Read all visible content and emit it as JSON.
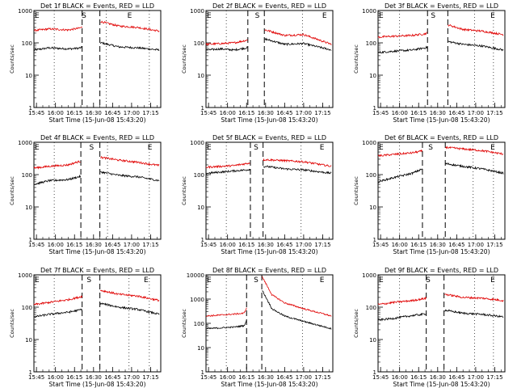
{
  "figure": {
    "xlabel": "Start Time (15-Jun-08 15:43:20)",
    "ylabel": "Counts/sec",
    "colors": {
      "events": "#000000",
      "lld": "#e00000"
    }
  },
  "chart_data": [
    {
      "type": "line",
      "title": "Det 1f BLACK = Events, RED = LLD",
      "xlabel": "Start Time (15-Jun-08 15:43:20)",
      "ylabel": "Counts/sec",
      "x_unit": "time",
      "xlim": [
        "15:43",
        "17:23"
      ],
      "x_ticks": [
        "15:45",
        "16:00",
        "16:15",
        "16:30",
        "16:45",
        "17:00",
        "17:15"
      ],
      "y_scale": "log",
      "ylim": [
        1,
        1000
      ],
      "y_ticks": [
        1,
        10,
        100,
        1000
      ],
      "markers": [
        {
          "label": "E",
          "time": "15:43"
        },
        {
          "label": "S",
          "time": "16:20"
        },
        {
          "label": "E",
          "time": "16:56"
        }
      ],
      "dashed_lines": [
        "16:21",
        "16:35"
      ],
      "dotted_lines": [
        "15:59",
        "16:40",
        "17:14"
      ],
      "series": [
        {
          "name": "Events",
          "color": "#000000",
          "times": [
            "15:43",
            "15:55",
            "16:10",
            "16:18",
            "16:36",
            "16:50",
            "17:05",
            "17:22"
          ],
          "values": [
            60,
            70,
            65,
            68,
            100,
            75,
            70,
            60
          ]
        },
        {
          "name": "LLD",
          "color": "#e00000",
          "times": [
            "15:43",
            "15:55",
            "16:10",
            "16:18",
            "16:36",
            "16:50",
            "17:05",
            "17:22"
          ],
          "values": [
            240,
            270,
            250,
            280,
            450,
            330,
            300,
            230
          ]
        }
      ]
    },
    {
      "type": "line",
      "title": "Det 2f BLACK = Events, RED = LLD",
      "xlabel": "Start Time (15-Jun-08 15:43:20)",
      "ylabel": "Counts/sec",
      "x_unit": "time",
      "xlim": [
        "15:43",
        "17:23"
      ],
      "x_ticks": [
        "15:45",
        "16:00",
        "16:15",
        "16:30",
        "16:45",
        "17:00",
        "17:15"
      ],
      "y_scale": "log",
      "ylim": [
        1,
        1000
      ],
      "y_ticks": [
        1,
        10,
        100,
        1000
      ],
      "markers": [
        {
          "label": "E",
          "time": "15:43"
        },
        {
          "label": "S",
          "time": "16:21"
        },
        {
          "label": "E",
          "time": "17:14"
        }
      ],
      "dashed_lines": [
        "16:16",
        "16:29"
      ],
      "dotted_lines": [
        "15:59",
        "16:59"
      ],
      "series": [
        {
          "name": "Events",
          "color": "#000000",
          "times": [
            "15:43",
            "15:55",
            "16:05",
            "16:15",
            "16:30",
            "16:45",
            "17:00",
            "17:22"
          ],
          "values": [
            60,
            65,
            60,
            70,
            130,
            90,
            95,
            60
          ]
        },
        {
          "name": "LLD",
          "color": "#e00000",
          "times": [
            "15:43",
            "15:55",
            "16:05",
            "16:15",
            "16:30",
            "16:45",
            "17:00",
            "17:22"
          ],
          "values": [
            90,
            95,
            100,
            120,
            250,
            170,
            180,
            90
          ]
        }
      ]
    },
    {
      "type": "line",
      "title": "Det 3f BLACK = Events, RED = LLD",
      "xlabel": "Start Time (15-Jun-08 15:43:20)",
      "ylabel": "Counts/sec",
      "x_unit": "time",
      "xlim": [
        "15:43",
        "17:23"
      ],
      "x_ticks": [
        "15:45",
        "16:00",
        "16:15",
        "16:30",
        "16:45",
        "17:00",
        "17:15"
      ],
      "y_scale": "log",
      "ylim": [
        1,
        1000
      ],
      "y_ticks": [
        1,
        10,
        100,
        1000
      ],
      "markers": [
        {
          "label": "E",
          "time": "15:43"
        },
        {
          "label": "S",
          "time": "16:24"
        },
        {
          "label": "E",
          "time": "17:11"
        }
      ],
      "dashed_lines": [
        "16:22",
        "16:38"
      ],
      "dotted_lines": [
        "16:00",
        "16:59",
        "17:14"
      ],
      "series": [
        {
          "name": "Events",
          "color": "#000000",
          "times": [
            "15:43",
            "15:55",
            "16:10",
            "16:20",
            "16:38",
            "16:50",
            "17:05",
            "17:22"
          ],
          "values": [
            50,
            55,
            60,
            70,
            110,
            90,
            80,
            60
          ]
        },
        {
          "name": "LLD",
          "color": "#e00000",
          "times": [
            "15:43",
            "15:55",
            "16:10",
            "16:20",
            "16:38",
            "16:50",
            "17:05",
            "17:22"
          ],
          "values": [
            150,
            160,
            170,
            190,
            360,
            260,
            230,
            180
          ]
        }
      ]
    },
    {
      "type": "line",
      "title": "Det 4f BLACK = Events, RED = LLD",
      "xlabel": "Start Time (15-Jun-08 15:43:20)",
      "ylabel": "Counts/sec",
      "x_unit": "time",
      "xlim": [
        "15:43",
        "17:23"
      ],
      "x_ticks": [
        "15:45",
        "16:00",
        "16:15",
        "16:30",
        "16:45",
        "17:00",
        "17:15"
      ],
      "y_scale": "log",
      "ylim": [
        1,
        1000
      ],
      "y_ticks": [
        1,
        10,
        100,
        1000
      ],
      "markers": [
        {
          "label": "E",
          "time": "15:43"
        },
        {
          "label": "S",
          "time": "16:26"
        },
        {
          "label": "E",
          "time": "17:12"
        }
      ],
      "dashed_lines": [
        "16:20",
        "16:35"
      ],
      "dotted_lines": [
        "15:59",
        "16:41",
        "17:14"
      ],
      "series": [
        {
          "name": "Events",
          "color": "#000000",
          "times": [
            "15:43",
            "15:55",
            "16:10",
            "16:18",
            "16:36",
            "16:50",
            "17:05",
            "17:22"
          ],
          "values": [
            50,
            65,
            70,
            85,
            120,
            95,
            85,
            65
          ]
        },
        {
          "name": "LLD",
          "color": "#e00000",
          "times": [
            "15:43",
            "15:55",
            "16:10",
            "16:18",
            "16:36",
            "16:50",
            "17:05",
            "17:22"
          ],
          "values": [
            160,
            180,
            200,
            250,
            340,
            280,
            240,
            190
          ]
        }
      ]
    },
    {
      "type": "line",
      "title": "Det 5f BLACK = Events, RED = LLD",
      "xlabel": "Start Time (15-Jun-08 15:43:20)",
      "ylabel": "Counts/sec",
      "x_unit": "time",
      "xlim": [
        "15:43",
        "17:23"
      ],
      "x_ticks": [
        "15:45",
        "16:00",
        "16:15",
        "16:30",
        "16:45",
        "17:00",
        "17:15"
      ],
      "y_scale": "log",
      "ylim": [
        1,
        1000
      ],
      "y_ticks": [
        1,
        10,
        100,
        1000
      ],
      "markers": [
        {
          "label": "E",
          "time": "15:43"
        },
        {
          "label": "S",
          "time": "16:20"
        },
        {
          "label": "E",
          "time": "17:12"
        }
      ],
      "dashed_lines": [
        "16:18",
        "16:28"
      ],
      "dotted_lines": [
        "15:59",
        "16:58"
      ],
      "series": [
        {
          "name": "Events",
          "color": "#000000",
          "times": [
            "15:43",
            "15:55",
            "16:05",
            "16:15",
            "16:30",
            "16:45",
            "17:00",
            "17:22"
          ],
          "values": [
            110,
            120,
            130,
            140,
            180,
            150,
            140,
            110
          ]
        },
        {
          "name": "LLD",
          "color": "#e00000",
          "times": [
            "15:43",
            "15:55",
            "16:05",
            "16:15",
            "16:30",
            "16:45",
            "17:00",
            "17:22"
          ],
          "values": [
            170,
            180,
            190,
            220,
            290,
            270,
            250,
            180
          ]
        }
      ]
    },
    {
      "type": "line",
      "title": "Det 6f BLACK = Events, RED = LLD",
      "xlabel": "Start Time (15-Jun-08 15:43:20)",
      "ylabel": "Counts/sec",
      "x_unit": "time",
      "xlim": [
        "15:43",
        "17:23"
      ],
      "x_ticks": [
        "15:45",
        "16:00",
        "16:15",
        "16:30",
        "16:45",
        "17:00",
        "17:15"
      ],
      "y_scale": "log",
      "ylim": [
        1,
        1000
      ],
      "y_ticks": [
        1,
        10,
        100,
        1000
      ],
      "markers": [
        {
          "label": "E",
          "time": "15:43"
        },
        {
          "label": "S",
          "time": "16:22"
        },
        {
          "label": "E",
          "time": "17:11"
        }
      ],
      "dashed_lines": [
        "16:18",
        "16:36"
      ],
      "dotted_lines": [
        "16:00",
        "16:58",
        "17:14"
      ],
      "series": [
        {
          "name": "Events",
          "color": "#000000",
          "times": [
            "15:43",
            "15:55",
            "16:10",
            "16:18",
            "16:36",
            "16:50",
            "17:05",
            "17:22"
          ],
          "values": [
            60,
            80,
            110,
            150,
            220,
            180,
            150,
            110
          ]
        },
        {
          "name": "LLD",
          "color": "#e00000",
          "times": [
            "15:43",
            "15:55",
            "16:10",
            "16:18",
            "16:36",
            "16:50",
            "17:05",
            "17:22"
          ],
          "values": [
            380,
            420,
            470,
            540,
            700,
            620,
            550,
            430
          ]
        }
      ]
    },
    {
      "type": "line",
      "title": "Det 7f BLACK = Events, RED = LLD",
      "xlabel": "Start Time (15-Jun-08 15:43:20)",
      "ylabel": "Counts/sec",
      "x_unit": "time",
      "xlim": [
        "15:43",
        "17:23"
      ],
      "x_ticks": [
        "15:45",
        "16:00",
        "16:15",
        "16:30",
        "16:45",
        "17:00",
        "17:15"
      ],
      "y_scale": "log",
      "ylim": [
        1,
        1000
      ],
      "y_ticks": [
        1,
        10,
        100,
        1000
      ],
      "markers": [
        {
          "label": "E",
          "time": "15:43"
        },
        {
          "label": "S",
          "time": "16:24"
        },
        {
          "label": "E",
          "time": "17:09"
        }
      ],
      "dashed_lines": [
        "16:21",
        "16:35"
      ],
      "dotted_lines": [
        "15:59",
        "16:58",
        "17:14"
      ],
      "series": [
        {
          "name": "Events",
          "color": "#000000",
          "times": [
            "15:43",
            "15:55",
            "16:10",
            "16:18",
            "16:36",
            "16:50",
            "17:05",
            "17:22"
          ],
          "values": [
            50,
            60,
            70,
            80,
            130,
            100,
            85,
            60
          ]
        },
        {
          "name": "LLD",
          "color": "#e00000",
          "times": [
            "15:43",
            "15:55",
            "16:10",
            "16:18",
            "16:36",
            "16:50",
            "17:05",
            "17:22"
          ],
          "values": [
            120,
            140,
            170,
            200,
            330,
            250,
            220,
            160
          ]
        }
      ]
    },
    {
      "type": "line",
      "title": "Det 8f BLACK = Events, RED = LLD",
      "xlabel": "Start Time (15-Jun-08 15:43:20)",
      "ylabel": "Counts/sec",
      "x_unit": "time",
      "xlim": [
        "15:43",
        "17:23"
      ],
      "x_ticks": [
        "15:45",
        "16:00",
        "16:15",
        "16:30",
        "16:45",
        "17:00",
        "17:15"
      ],
      "y_scale": "log",
      "ylim": [
        1,
        10000
      ],
      "y_ticks": [
        1,
        10,
        100,
        1000,
        10000
      ],
      "markers": [
        {
          "label": "E",
          "time": "15:43"
        },
        {
          "label": "S",
          "time": "16:20"
        },
        {
          "label": "E",
          "time": "17:12"
        }
      ],
      "dashed_lines": [
        "16:15",
        "16:27"
      ],
      "dotted_lines": [
        "15:59",
        "16:59"
      ],
      "series": [
        {
          "name": "Events",
          "color": "#000000",
          "times": [
            "15:43",
            "15:55",
            "16:05",
            "16:13",
            "16:27",
            "16:35",
            "16:45",
            "17:00",
            "17:22"
          ],
          "values": [
            60,
            65,
            70,
            80,
            2500,
            400,
            200,
            120,
            60
          ]
        },
        {
          "name": "LLD",
          "color": "#e00000",
          "times": [
            "15:43",
            "15:55",
            "16:05",
            "16:13",
            "16:27",
            "16:35",
            "16:45",
            "17:00",
            "17:22"
          ],
          "values": [
            200,
            220,
            240,
            260,
            9000,
            1500,
            700,
            400,
            200
          ]
        }
      ]
    },
    {
      "type": "line",
      "title": "Det 9f BLACK = Events, RED = LLD",
      "xlabel": "Start Time (15-Jun-08 15:43:20)",
      "ylabel": "Counts/sec",
      "x_unit": "time",
      "xlim": [
        "15:43",
        "17:23"
      ],
      "x_ticks": [
        "15:45",
        "16:00",
        "16:15",
        "16:30",
        "16:45",
        "17:00",
        "17:15"
      ],
      "y_scale": "log",
      "ylim": [
        1,
        1000
      ],
      "y_ticks": [
        1,
        10,
        100,
        1000
      ],
      "markers": [
        {
          "label": "E",
          "time": "15:43"
        },
        {
          "label": "S",
          "time": "16:20"
        },
        {
          "label": "E",
          "time": "17:11"
        }
      ],
      "dashed_lines": [
        "16:21",
        "16:35"
      ],
      "dotted_lines": [
        "16:00",
        "16:59",
        "17:14"
      ],
      "series": [
        {
          "name": "Events",
          "color": "#000000",
          "times": [
            "15:43",
            "15:55",
            "16:10",
            "16:18",
            "16:36",
            "16:50",
            "17:05",
            "17:22"
          ],
          "values": [
            40,
            45,
            55,
            60,
            80,
            65,
            60,
            50
          ]
        },
        {
          "name": "LLD",
          "color": "#e00000",
          "times": [
            "15:43",
            "15:55",
            "16:10",
            "16:18",
            "16:36",
            "16:50",
            "17:05",
            "17:22"
          ],
          "values": [
            120,
            140,
            160,
            180,
            250,
            200,
            190,
            160
          ]
        }
      ]
    }
  ]
}
